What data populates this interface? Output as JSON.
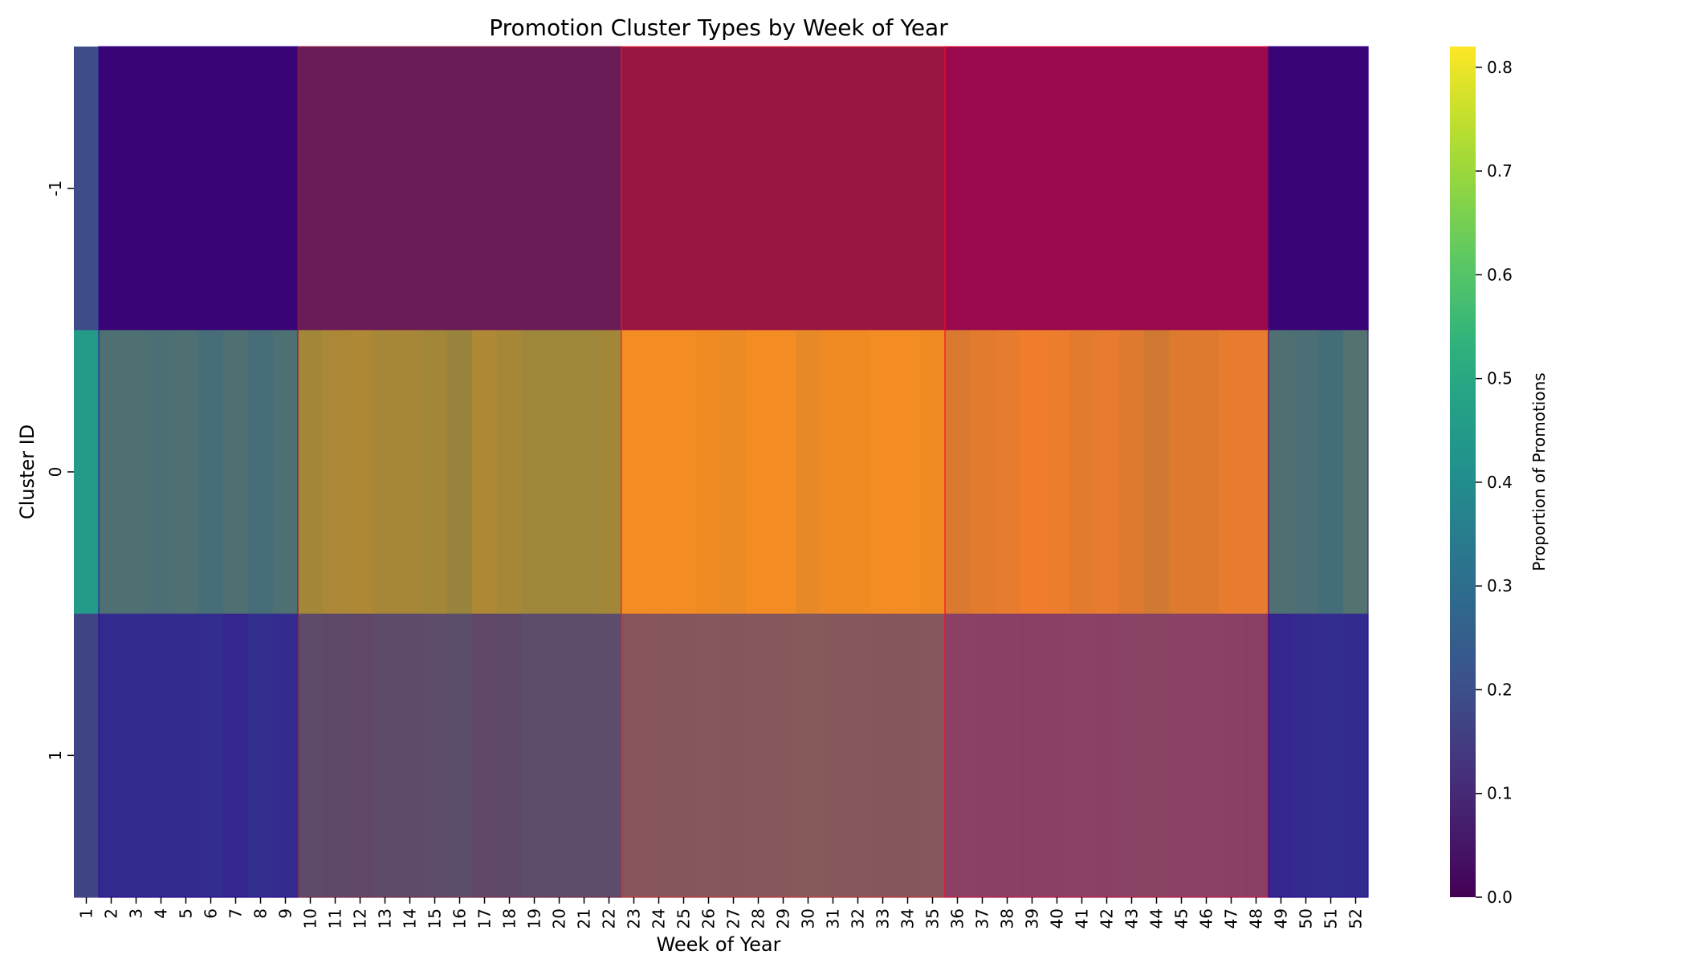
{
  "chart_data": {
    "type": "heatmap",
    "title": "Promotion Cluster Types by Week of Year",
    "xlabel": "Week of Year",
    "ylabel": "Cluster ID",
    "colorbar_label": "Proportion of Promotions",
    "colormap": "viridis",
    "color_range": [
      0,
      0.82
    ],
    "colorbar_ticks": [
      "0.0",
      "0.1",
      "0.2",
      "0.3",
      "0.4",
      "0.5",
      "0.6",
      "0.7",
      "0.8"
    ],
    "colorbar_tick_values": [
      0,
      0.1,
      0.2,
      0.3,
      0.4,
      0.5,
      0.6,
      0.7,
      0.8
    ],
    "rows": [
      "-1",
      "0",
      "1"
    ],
    "columns": [
      "1",
      "2",
      "3",
      "4",
      "5",
      "6",
      "7",
      "8",
      "9",
      "10",
      "11",
      "12",
      "13",
      "14",
      "15",
      "16",
      "17",
      "18",
      "19",
      "20",
      "21",
      "22",
      "23",
      "24",
      "25",
      "26",
      "27",
      "28",
      "29",
      "30",
      "31",
      "32",
      "33",
      "34",
      "35",
      "36",
      "37",
      "38",
      "39",
      "40",
      "41",
      "42",
      "43",
      "44",
      "45",
      "46",
      "47",
      "48",
      "49",
      "50",
      "51",
      "52"
    ],
    "values": [
      [
        0.19,
        0.02,
        0.02,
        0.02,
        0.02,
        0.02,
        0.02,
        0.02,
        0.02,
        0.06,
        0.06,
        0.06,
        0.06,
        0.06,
        0.06,
        0.06,
        0.06,
        0.06,
        0.06,
        0.06,
        0.06,
        0.06,
        0.03,
        0.03,
        0.03,
        0.03,
        0.03,
        0.03,
        0.03,
        0.03,
        0.03,
        0.03,
        0.03,
        0.03,
        0.03,
        0.04,
        0.04,
        0.04,
        0.04,
        0.04,
        0.04,
        0.04,
        0.04,
        0.04,
        0.04,
        0.04,
        0.04,
        0.04,
        0.02,
        0.02,
        0.02,
        0.02
      ],
      [
        0.45,
        0.64,
        0.64,
        0.63,
        0.64,
        0.62,
        0.64,
        0.62,
        0.64,
        0.72,
        0.74,
        0.75,
        0.73,
        0.73,
        0.72,
        0.7,
        0.75,
        0.73,
        0.71,
        0.71,
        0.71,
        0.72,
        0.8,
        0.8,
        0.8,
        0.79,
        0.78,
        0.8,
        0.8,
        0.77,
        0.79,
        0.79,
        0.8,
        0.8,
        0.79,
        0.74,
        0.76,
        0.77,
        0.79,
        0.78,
        0.76,
        0.77,
        0.75,
        0.72,
        0.75,
        0.75,
        0.77,
        0.77,
        0.64,
        0.63,
        0.61,
        0.65
      ],
      [
        0.17,
        0.2,
        0.2,
        0.2,
        0.2,
        0.21,
        0.18,
        0.22,
        0.2,
        0.3,
        0.29,
        0.28,
        0.3,
        0.3,
        0.31,
        0.33,
        0.28,
        0.29,
        0.31,
        0.31,
        0.31,
        0.31,
        0.36,
        0.37,
        0.37,
        0.38,
        0.37,
        0.38,
        0.38,
        0.39,
        0.38,
        0.38,
        0.37,
        0.37,
        0.38,
        0.33,
        0.32,
        0.32,
        0.31,
        0.32,
        0.33,
        0.32,
        0.34,
        0.35,
        0.33,
        0.33,
        0.32,
        0.31,
        0.18,
        0.2,
        0.21,
        0.2
      ]
    ],
    "season_overlays": [
      {
        "weeks": [
          2,
          9
        ],
        "color": "#2a0095"
      },
      {
        "weeks": [
          10,
          22
        ],
        "color": "#9a2040"
      },
      {
        "weeks": [
          23,
          35
        ],
        "color": "#ff2020"
      },
      {
        "weeks": [
          36,
          48
        ],
        "color": "#ff0030"
      },
      {
        "weeks": [
          49,
          52
        ],
        "color": "#2a0095"
      }
    ],
    "grid": false,
    "legend": "colorbar-right"
  }
}
